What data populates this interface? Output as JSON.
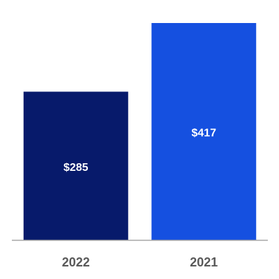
{
  "chart_data": {
    "type": "bar",
    "categories": [
      "2022",
      "2021"
    ],
    "values": [
      285,
      417
    ],
    "value_labels": [
      "$285",
      "$417"
    ],
    "colors": [
      "#071a6b",
      "#1550e0"
    ]
  }
}
